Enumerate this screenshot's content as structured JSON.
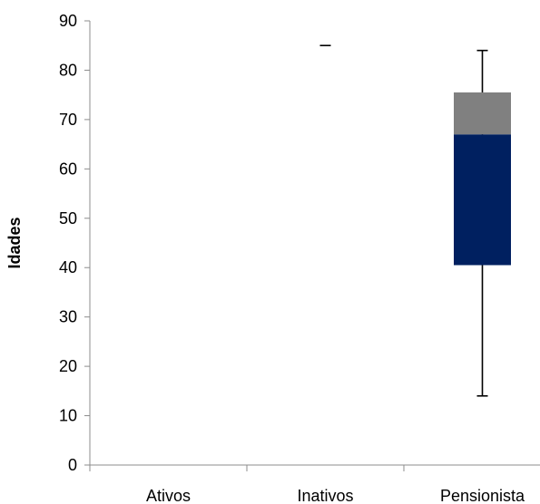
{
  "chart_data": {
    "type": "box",
    "categories": [
      "Ativos",
      "Inativos",
      "Pensionista"
    ],
    "ylabel": "Idades",
    "xlabel": "",
    "ylim": [
      0,
      90
    ],
    "yticks": [
      0,
      10,
      20,
      30,
      40,
      50,
      60,
      70,
      80,
      90
    ],
    "grid": false,
    "colors": {
      "lower_box": "#002060",
      "upper_box": "#808080",
      "whisker": "#000000",
      "axis": "#8c8c8c"
    },
    "boxes": [
      {
        "category": "Ativos",
        "min": null,
        "q1": null,
        "median": null,
        "q3": null,
        "max": null
      },
      {
        "category": "Inativos",
        "min": 85,
        "q1": 85,
        "median": 85,
        "q3": 85,
        "max": 85
      },
      {
        "category": "Pensionista",
        "min": 14,
        "q1": 40.5,
        "median": 67,
        "q3": 75.5,
        "max": 84
      }
    ]
  }
}
